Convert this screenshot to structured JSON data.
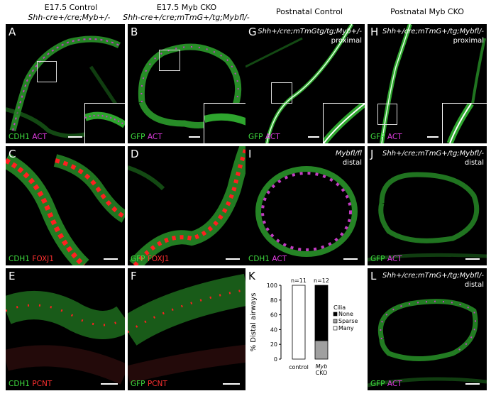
{
  "headers": {
    "col1_title": "E17.5 Control",
    "col1_geno": "Shh-cre+/cre;Myb+/-",
    "col2_title": "E17.5 Myb CKO",
    "col2_geno": "Shh-cre+/cre;mTmG+/tg;Mybfl/-",
    "col3_title": "Postnatal Control",
    "col4_title": "Postnatal Myb CKO"
  },
  "panels": {
    "A": {
      "label": "A",
      "stain1": "CDH1",
      "stain2": "ACT"
    },
    "B": {
      "label": "B",
      "stain1": "GFP",
      "stain2": "ACT"
    },
    "C": {
      "label": "C",
      "stain1": "CDH1",
      "stain2": "FOXJ1"
    },
    "D": {
      "label": "D",
      "stain1": "GFP",
      "stain2": "FOXJ1"
    },
    "E": {
      "label": "E",
      "stain1": "CDH1",
      "stain2": "PCNT"
    },
    "F": {
      "label": "F",
      "stain1": "GFP",
      "stain2": "PCNT"
    },
    "G": {
      "label": "G",
      "stain1": "GFP",
      "stain2": "ACT",
      "geno": "Shh+/cre;mTmGtg/tg;Myb+/-",
      "region": "proximal"
    },
    "H": {
      "label": "H",
      "stain1": "GFP",
      "stain2": "ACT",
      "geno": "Shh+/cre;mTmG+/tg;Mybfl/-",
      "region": "proximal"
    },
    "I": {
      "label": "I",
      "stain1": "CDH1",
      "stain2": "ACT",
      "geno": "Mybfl/fl",
      "region": "distal"
    },
    "J": {
      "label": "J",
      "stain1": "GFP",
      "stain2": "ACT",
      "geno": "Shh+/cre;mTmG+/tg;Mybfl/-",
      "region": "distal"
    },
    "K": {
      "label": "K"
    },
    "L": {
      "label": "L",
      "stain1": "GFP",
      "stain2": "ACT",
      "geno": "Shh+/cre;mTmG+/tg;Mybfl/-",
      "region": "distal"
    }
  },
  "colors": {
    "green": "#3fdc3f",
    "magenta": "#e23ee2",
    "red": "#ff3030"
  },
  "chart_data": {
    "type": "bar",
    "stacked": true,
    "categories": [
      "control",
      "Myb CKO"
    ],
    "n_labels": [
      "n=11",
      "n=12"
    ],
    "series": [
      {
        "name": "Many",
        "values": [
          100,
          0
        ],
        "color": "#ffffff"
      },
      {
        "name": "Sparse",
        "values": [
          0,
          25
        ],
        "color": "#a0a0a0"
      },
      {
        "name": "None",
        "values": [
          0,
          75
        ],
        "color": "#000000"
      }
    ],
    "ylabel": "% Distal airways",
    "yticks": [
      0,
      20,
      40,
      60,
      80,
      100
    ],
    "ylim": [
      0,
      100
    ],
    "legend_title": "Cilia",
    "legend_entries": [
      "None",
      "Sparse",
      "Many"
    ]
  }
}
